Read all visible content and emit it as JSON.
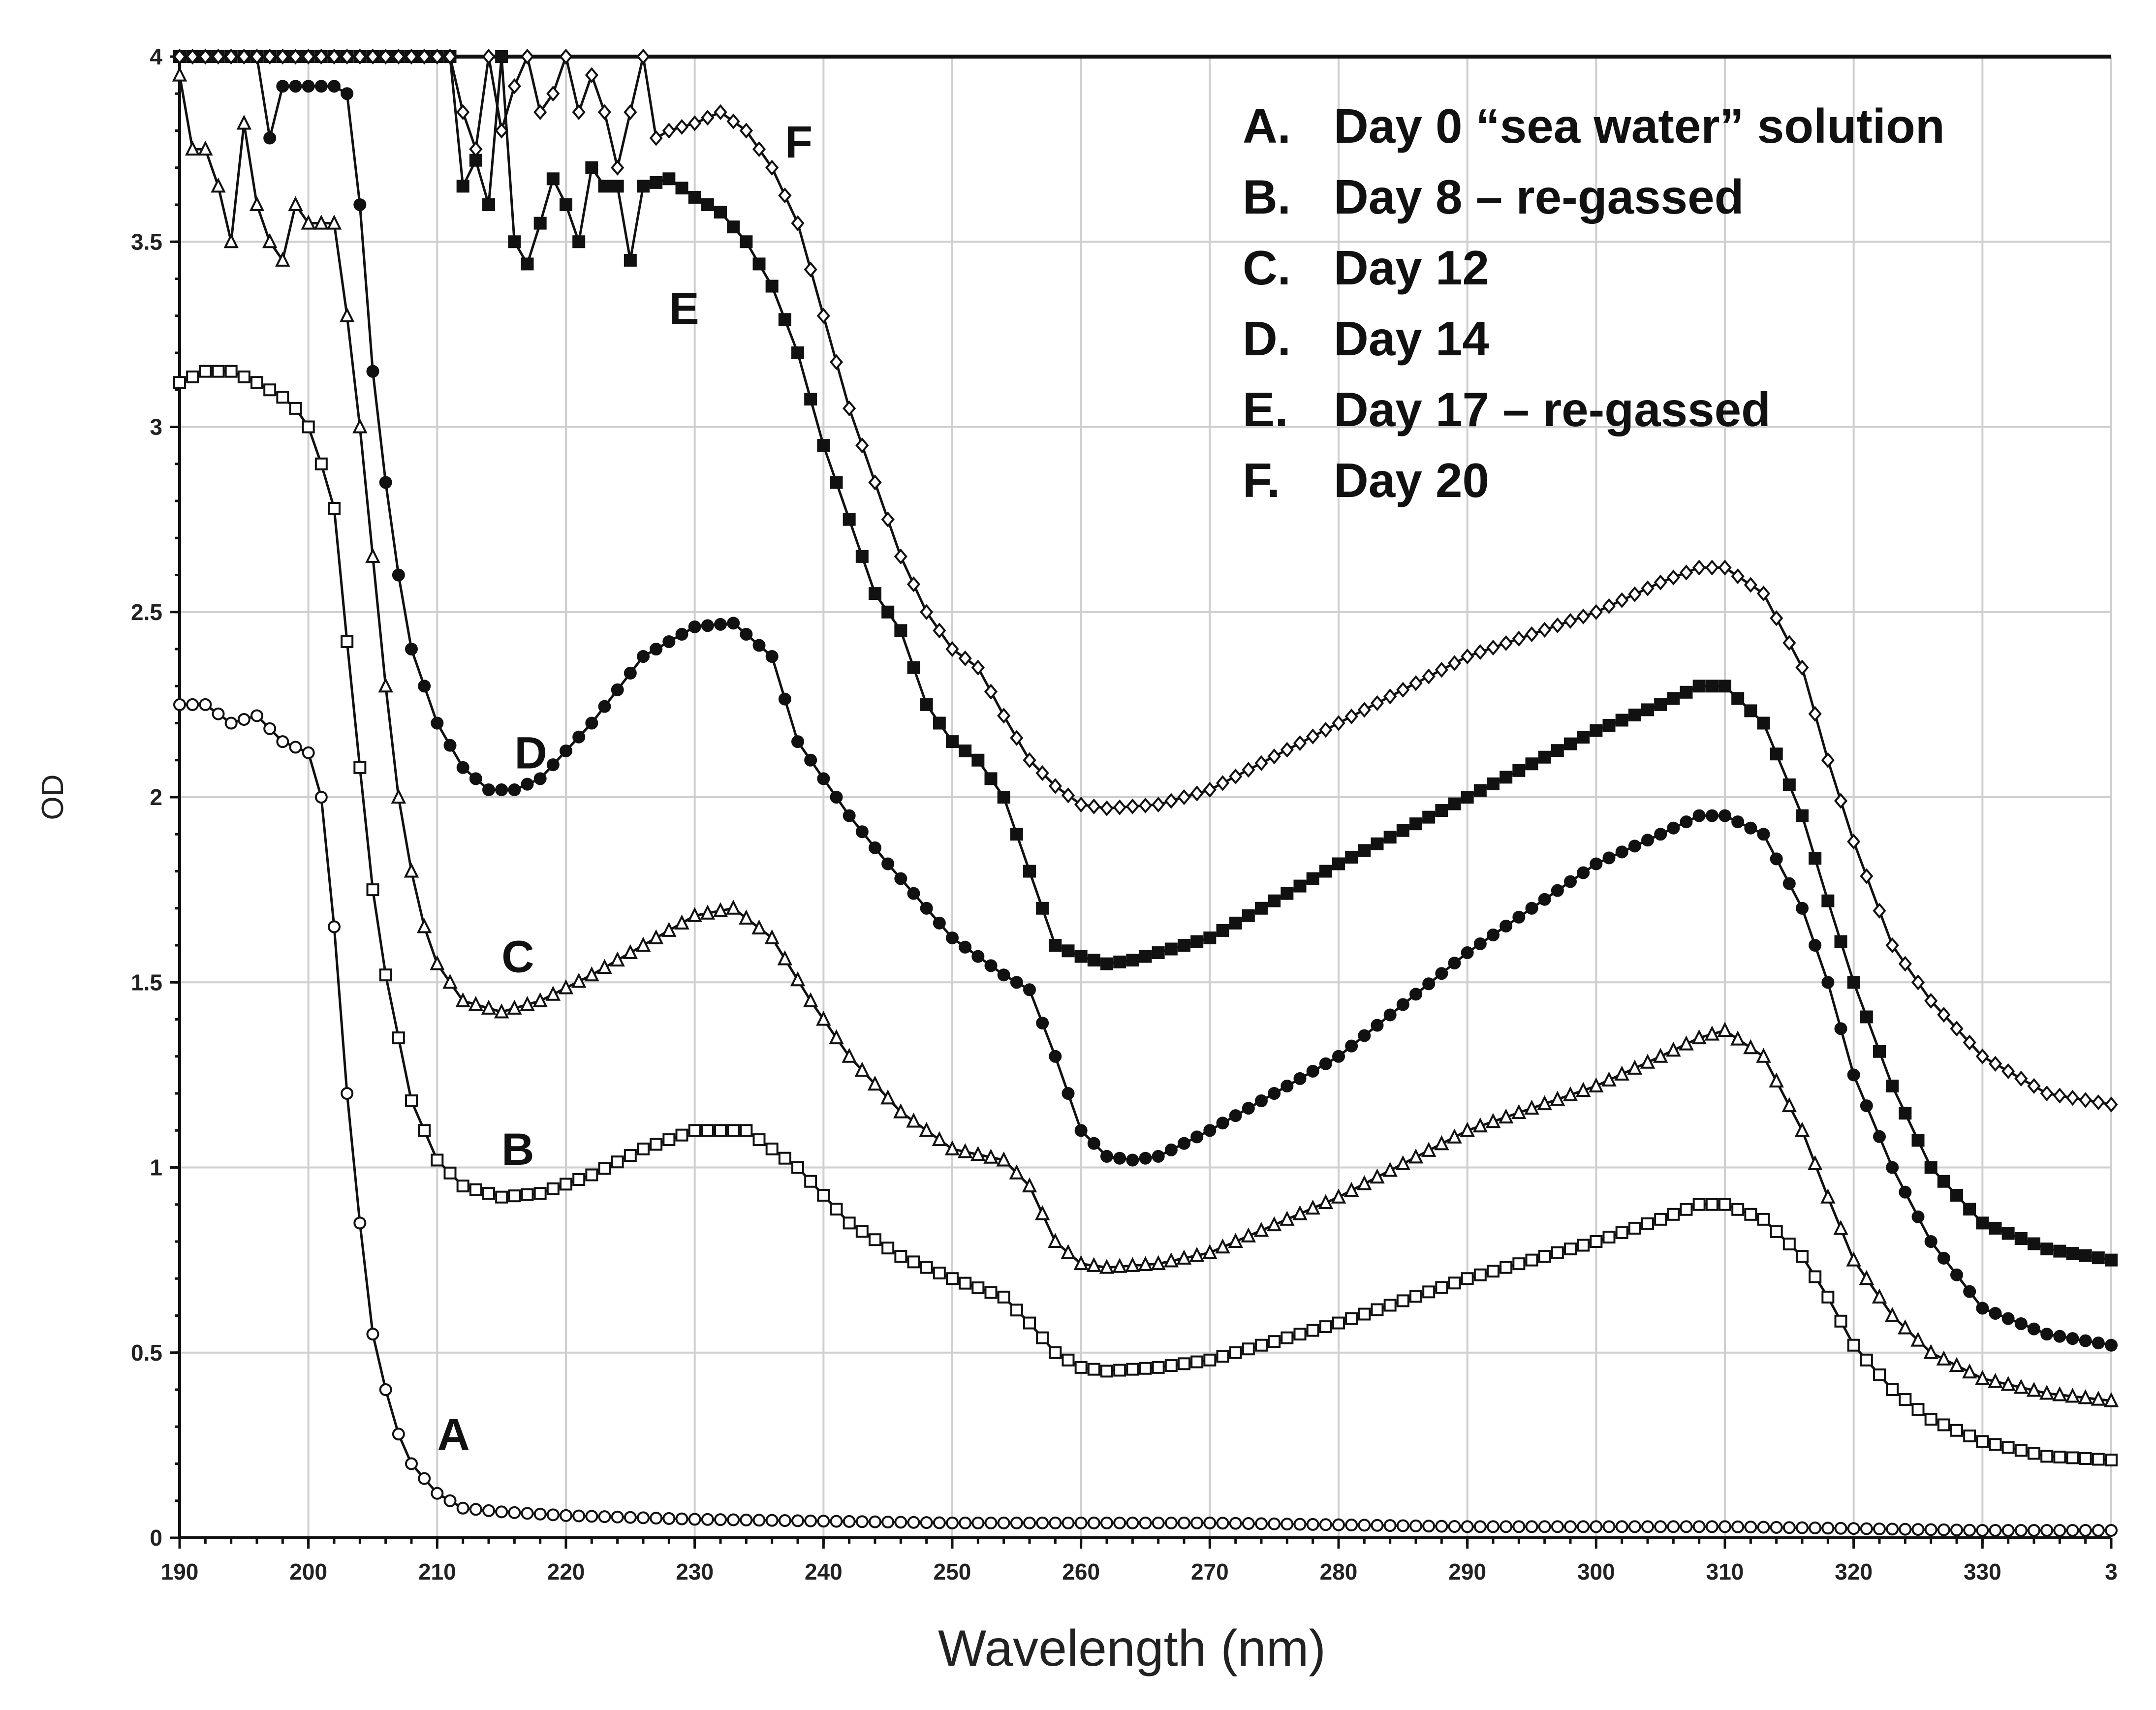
{
  "chart_data": {
    "type": "line",
    "xlabel": "Wavelength (nm)",
    "ylabel": "OD",
    "xlim": [
      190,
      340
    ],
    "ylim": [
      0,
      4
    ],
    "x_ticks": [
      "190",
      "200",
      "210",
      "220",
      "230",
      "240",
      "250",
      "260",
      "270",
      "280",
      "290",
      "300",
      "310",
      "320",
      "330",
      "3"
    ],
    "y_ticks": [
      "0",
      "0.5",
      "1",
      "1.5",
      "2",
      "2.5",
      "3",
      "3.5",
      "4"
    ],
    "grid": true,
    "legend_position": "top-right",
    "legend": [
      {
        "letter": "A.",
        "text": "Day 0  “sea water” solution"
      },
      {
        "letter": "B.",
        "text": "Day 8 – re-gassed"
      },
      {
        "letter": "C.",
        "text": "Day 12"
      },
      {
        "letter": "D.",
        "text": "Day 14"
      },
      {
        "letter": "E.",
        "text": "Day 17 – re-gassed"
      },
      {
        "letter": "F.",
        "text": "Day 20"
      }
    ],
    "series": [
      {
        "name": "A",
        "label": "A",
        "marker": "open-circle",
        "label_at": [
          210,
          0.28
        ],
        "x": [
          190,
          192,
          194,
          196,
          198,
          200,
          201,
          202,
          203,
          204,
          205,
          206,
          207,
          208,
          210,
          212,
          215,
          220,
          230,
          250,
          270,
          290,
          310,
          330,
          340
        ],
        "values": [
          2.25,
          2.25,
          2.2,
          2.22,
          2.15,
          2.12,
          2.0,
          1.65,
          1.2,
          0.85,
          0.55,
          0.4,
          0.28,
          0.2,
          0.12,
          0.08,
          0.07,
          0.06,
          0.05,
          0.04,
          0.04,
          0.03,
          0.03,
          0.02,
          0.02
        ]
      },
      {
        "name": "B",
        "label": "B",
        "marker": "open-square",
        "label_at": [
          215,
          1.05
        ],
        "x": [
          190,
          192,
          194,
          196,
          198,
          199,
          200,
          201,
          202,
          203,
          204,
          205,
          206,
          207,
          208,
          210,
          212,
          215,
          218,
          222,
          226,
          230,
          234,
          238,
          242,
          246,
          250,
          254,
          256,
          258,
          260,
          262,
          266,
          270,
          280,
          290,
          300,
          305,
          308,
          310,
          313,
          316,
          318,
          320,
          323,
          326,
          330,
          335,
          340
        ],
        "values": [
          3.12,
          3.15,
          3.15,
          3.12,
          3.08,
          3.05,
          3.0,
          2.9,
          2.78,
          2.42,
          2.08,
          1.75,
          1.52,
          1.35,
          1.18,
          1.02,
          0.95,
          0.92,
          0.93,
          0.98,
          1.05,
          1.1,
          1.1,
          1.0,
          0.85,
          0.76,
          0.7,
          0.65,
          0.58,
          0.5,
          0.46,
          0.45,
          0.46,
          0.48,
          0.58,
          0.7,
          0.8,
          0.86,
          0.9,
          0.9,
          0.86,
          0.76,
          0.65,
          0.52,
          0.4,
          0.32,
          0.26,
          0.22,
          0.21
        ]
      },
      {
        "name": "C",
        "label": "C",
        "marker": "open-triangle",
        "label_at": [
          215,
          1.57
        ],
        "x": [
          190,
          191,
          192,
          193,
          194,
          195,
          196,
          197,
          198,
          199,
          200,
          201,
          202,
          203,
          204,
          205,
          206,
          207,
          208,
          209,
          210,
          212,
          215,
          218,
          222,
          226,
          230,
          233,
          236,
          239,
          242,
          246,
          250,
          254,
          256,
          258,
          260,
          262,
          266,
          270,
          280,
          290,
          300,
          305,
          308,
          310,
          313,
          316,
          318,
          320,
          323,
          326,
          330,
          335,
          340
        ],
        "values": [
          3.95,
          3.75,
          3.75,
          3.65,
          3.5,
          3.82,
          3.6,
          3.5,
          3.45,
          3.6,
          3.55,
          3.55,
          3.55,
          3.3,
          3.0,
          2.65,
          2.3,
          2.0,
          1.8,
          1.65,
          1.55,
          1.45,
          1.42,
          1.45,
          1.52,
          1.6,
          1.68,
          1.7,
          1.62,
          1.45,
          1.3,
          1.15,
          1.05,
          1.02,
          0.95,
          0.8,
          0.74,
          0.73,
          0.74,
          0.77,
          0.92,
          1.1,
          1.22,
          1.3,
          1.35,
          1.37,
          1.3,
          1.1,
          0.92,
          0.75,
          0.6,
          0.5,
          0.43,
          0.39,
          0.37
        ]
      },
      {
        "name": "D",
        "label": "D",
        "marker": "filled-circle",
        "label_at": [
          216,
          2.12
        ],
        "x": [
          190,
          192,
          194,
          196,
          197,
          198,
          200,
          202,
          203,
          204,
          205,
          206,
          207,
          208,
          209,
          210,
          212,
          214,
          216,
          218,
          222,
          226,
          230,
          233,
          236,
          238,
          240,
          242,
          245,
          248,
          250,
          254,
          256,
          258,
          260,
          262,
          264,
          266,
          270,
          280,
          290,
          300,
          305,
          308,
          310,
          313,
          316,
          318,
          320,
          323,
          326,
          330,
          335,
          340
        ],
        "values": [
          4.0,
          4.0,
          4.0,
          4.0,
          3.78,
          3.92,
          3.92,
          3.92,
          3.9,
          3.6,
          3.15,
          2.85,
          2.6,
          2.4,
          2.3,
          2.2,
          2.08,
          2.02,
          2.02,
          2.05,
          2.2,
          2.38,
          2.46,
          2.47,
          2.38,
          2.15,
          2.05,
          1.95,
          1.82,
          1.7,
          1.62,
          1.52,
          1.48,
          1.3,
          1.1,
          1.03,
          1.02,
          1.03,
          1.1,
          1.3,
          1.58,
          1.82,
          1.9,
          1.95,
          1.95,
          1.9,
          1.7,
          1.5,
          1.25,
          1.0,
          0.8,
          0.62,
          0.55,
          0.52
        ]
      },
      {
        "name": "E",
        "label": "E",
        "marker": "filled-square",
        "label_at": [
          228,
          3.32
        ],
        "x": [
          190,
          195,
          198,
          200,
          202,
          205,
          208,
          210,
          211,
          212,
          213,
          214,
          215,
          216,
          217,
          218,
          219,
          220,
          221,
          222,
          223,
          224,
          225,
          226,
          228,
          230,
          232,
          234,
          236,
          238,
          240,
          242,
          244,
          246,
          248,
          250,
          252,
          254,
          256,
          258,
          260,
          262,
          264,
          266,
          270,
          280,
          290,
          300,
          305,
          308,
          310,
          313,
          316,
          318,
          320,
          323,
          326,
          330,
          335,
          340
        ],
        "values": [
          4.0,
          4.0,
          4.0,
          4.0,
          4.0,
          4.0,
          4.0,
          4.0,
          4.0,
          3.65,
          3.72,
          3.6,
          4.0,
          3.5,
          3.44,
          3.55,
          3.67,
          3.6,
          3.5,
          3.7,
          3.65,
          3.65,
          3.45,
          3.65,
          3.67,
          3.62,
          3.58,
          3.5,
          3.38,
          3.2,
          2.95,
          2.75,
          2.55,
          2.45,
          2.25,
          2.15,
          2.1,
          2.0,
          1.8,
          1.6,
          1.57,
          1.55,
          1.56,
          1.58,
          1.62,
          1.82,
          2.0,
          2.18,
          2.25,
          2.3,
          2.3,
          2.2,
          1.95,
          1.72,
          1.5,
          1.22,
          1.0,
          0.85,
          0.78,
          0.75
        ]
      },
      {
        "name": "F",
        "label": "F",
        "marker": "open-diamond",
        "label_at": [
          237,
          3.77
        ],
        "x": [
          190,
          200,
          205,
          210,
          211,
          212,
          213,
          214,
          215,
          216,
          217,
          218,
          219,
          220,
          221,
          222,
          223,
          224,
          225,
          226,
          227,
          228,
          230,
          232,
          234,
          235,
          236,
          238,
          240,
          242,
          244,
          246,
          248,
          250,
          252,
          254,
          256,
          258,
          260,
          262,
          266,
          270,
          280,
          290,
          300,
          305,
          308,
          310,
          313,
          316,
          318,
          320,
          323,
          326,
          330,
          335,
          340
        ],
        "values": [
          4.0,
          4.0,
          4.0,
          4.0,
          4.0,
          3.85,
          3.75,
          4.0,
          3.8,
          3.92,
          4.0,
          3.85,
          3.9,
          4.0,
          3.85,
          3.95,
          3.85,
          3.7,
          3.85,
          4.0,
          3.78,
          3.8,
          3.82,
          3.85,
          3.8,
          3.75,
          3.7,
          3.55,
          3.3,
          3.05,
          2.85,
          2.65,
          2.5,
          2.4,
          2.35,
          2.22,
          2.1,
          2.03,
          1.98,
          1.97,
          1.98,
          2.02,
          2.2,
          2.38,
          2.5,
          2.58,
          2.62,
          2.62,
          2.55,
          2.35,
          2.1,
          1.88,
          1.6,
          1.45,
          1.3,
          1.2,
          1.17
        ]
      }
    ]
  }
}
